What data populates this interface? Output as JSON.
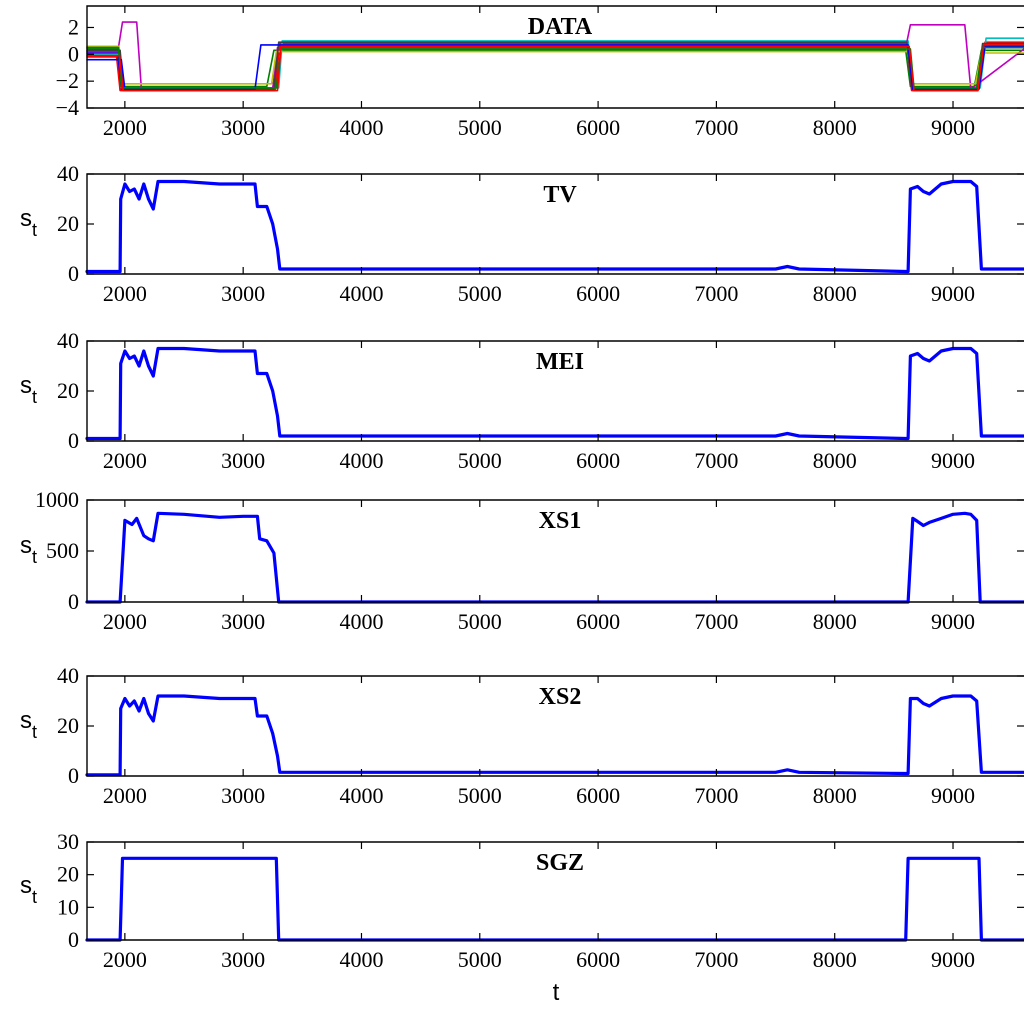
{
  "figure": {
    "xlabel": "t"
  },
  "chart_data": [
    {
      "type": "line",
      "title": "DATA",
      "ylabel": "",
      "xlim": [
        1680,
        9600
      ],
      "ylim": [
        -4,
        3.6
      ],
      "xticks": [
        2000,
        3000,
        4000,
        5000,
        6000,
        7000,
        8000,
        9000
      ],
      "yticks": [
        -4,
        -2,
        0,
        2
      ],
      "ytick_labels": [
        "−4",
        "−2",
        "0",
        "2"
      ],
      "series_colors": [
        "#0000ff",
        "#008000",
        "#ff0000",
        "#00bfbf",
        "#bf00bf",
        "#bfbf00",
        "#404040",
        "#0000ff",
        "#008000",
        "#ff0000"
      ],
      "series": [
        {
          "x": [
            1680,
            1940,
            1960,
            3250,
            3300,
            8620,
            8650,
            9200,
            9260,
            9600
          ],
          "y": [
            0.1,
            0.1,
            -2.6,
            -2.6,
            0.6,
            0.6,
            -2.6,
            -2.6,
            0.5,
            0.5
          ]
        },
        {
          "x": [
            1680,
            1950,
            1970,
            3200,
            3260,
            8600,
            8640,
            9180,
            9240,
            9600
          ],
          "y": [
            0.4,
            0.4,
            -2.4,
            -2.4,
            0.3,
            0.3,
            -2.4,
            -2.4,
            0.3,
            0.3
          ]
        },
        {
          "x": [
            1680,
            1930,
            1960,
            3270,
            3310,
            8610,
            8650,
            9210,
            9270,
            9600
          ],
          "y": [
            -0.2,
            -0.2,
            -2.7,
            -2.7,
            0.8,
            0.8,
            -2.7,
            -2.7,
            0.9,
            0.9
          ]
        },
        {
          "x": [
            1680,
            1960,
            1990,
            3300,
            3330,
            8620,
            8660,
            9230,
            9280,
            9600
          ],
          "y": [
            0.0,
            0.0,
            -2.5,
            -2.5,
            1.0,
            1.0,
            -2.5,
            -2.5,
            1.2,
            1.2
          ]
        },
        {
          "x": [
            1680,
            1940,
            1980,
            2100,
            2140,
            3250,
            3290,
            8600,
            8640,
            9100,
            9150,
            9600
          ],
          "y": [
            0.2,
            0.2,
            2.4,
            2.4,
            -2.6,
            -2.6,
            0.5,
            0.5,
            2.2,
            2.2,
            -2.6,
            0.4
          ]
        },
        {
          "x": [
            1680,
            1950,
            1980,
            3240,
            3280,
            8630,
            8660,
            9190,
            9240,
            9600
          ],
          "y": [
            0.6,
            0.6,
            -2.2,
            -2.2,
            0.2,
            0.2,
            -2.2,
            -2.2,
            0.1,
            0.1
          ]
        },
        {
          "x": [
            1680,
            1960,
            1990,
            3260,
            3300,
            8610,
            8650,
            9200,
            9250,
            9600
          ],
          "y": [
            0.3,
            0.3,
            -2.6,
            -2.6,
            0.9,
            0.9,
            -2.6,
            -2.6,
            0.8,
            0.8
          ]
        },
        {
          "x": [
            1680,
            1970,
            2000,
            3100,
            3150,
            8620,
            8660,
            9220,
            9270,
            9600
          ],
          "y": [
            -0.4,
            -0.4,
            -2.6,
            -2.6,
            0.7,
            0.7,
            -2.6,
            -2.6,
            0.6,
            0.6
          ]
        },
        {
          "x": [
            1680,
            1945,
            1975,
            3280,
            3320,
            8640,
            8670,
            9200,
            9250,
            9600
          ],
          "y": [
            0.5,
            0.5,
            -2.5,
            -2.5,
            0.4,
            0.4,
            -2.5,
            -2.5,
            0.5,
            0.5
          ]
        },
        {
          "x": [
            1680,
            1955,
            1985,
            3290,
            3320,
            8630,
            8670,
            9210,
            9260,
            9600
          ],
          "y": [
            -0.1,
            -0.1,
            -2.7,
            -2.7,
            0.6,
            0.6,
            -2.7,
            -2.7,
            0.7,
            0.7
          ]
        }
      ]
    },
    {
      "type": "line",
      "title": "TV",
      "ylabel": "s_t",
      "xlim": [
        1680,
        9600
      ],
      "ylim": [
        0,
        40
      ],
      "xticks": [
        2000,
        3000,
        4000,
        5000,
        6000,
        7000,
        8000,
        9000
      ],
      "yticks": [
        0,
        20,
        40
      ],
      "ytick_labels": [
        "0",
        "20",
        "40"
      ],
      "series_colors": [
        "#0000ff"
      ],
      "series": [
        {
          "x": [
            1680,
            1960,
            1965,
            2000,
            2040,
            2080,
            2120,
            2160,
            2200,
            2240,
            2280,
            2500,
            2800,
            3000,
            3100,
            3120,
            3200,
            3250,
            3290,
            3310,
            3350,
            3400,
            5000,
            7000,
            7500,
            7600,
            7700,
            8600,
            8620,
            8640,
            8700,
            8750,
            8800,
            8900,
            9000,
            9100,
            9150,
            9200,
            9240,
            9300,
            9600
          ],
          "y": [
            1,
            1,
            30,
            36,
            33,
            34,
            30,
            36,
            30,
            26,
            37,
            37,
            36,
            36,
            36,
            27,
            27,
            20,
            10,
            2,
            2,
            2,
            2,
            2,
            2,
            3,
            2,
            1,
            1,
            34,
            35,
            33,
            32,
            36,
            37,
            37,
            37,
            35,
            2,
            2,
            2
          ]
        }
      ]
    },
    {
      "type": "line",
      "title": "MEI",
      "ylabel": "s_t",
      "xlim": [
        1680,
        9600
      ],
      "ylim": [
        0,
        40
      ],
      "xticks": [
        2000,
        3000,
        4000,
        5000,
        6000,
        7000,
        8000,
        9000
      ],
      "yticks": [
        0,
        20,
        40
      ],
      "ytick_labels": [
        "0",
        "20",
        "40"
      ],
      "series_colors": [
        "#0000ff"
      ],
      "series": [
        {
          "x": [
            1680,
            1960,
            1965,
            2000,
            2040,
            2080,
            2120,
            2160,
            2200,
            2240,
            2280,
            2500,
            2800,
            3000,
            3100,
            3120,
            3200,
            3250,
            3290,
            3310,
            3350,
            3400,
            5000,
            7000,
            7500,
            7600,
            7700,
            8600,
            8620,
            8640,
            8700,
            8750,
            8800,
            8900,
            9000,
            9100,
            9150,
            9200,
            9240,
            9300,
            9600
          ],
          "y": [
            1,
            1,
            31,
            36,
            33,
            34,
            30,
            36,
            30,
            26,
            37,
            37,
            36,
            36,
            36,
            27,
            27,
            20,
            10,
            2,
            2,
            2,
            2,
            2,
            2,
            3,
            2,
            1,
            1,
            34,
            35,
            33,
            32,
            36,
            37,
            37,
            37,
            35,
            2,
            2,
            2
          ]
        }
      ]
    },
    {
      "type": "line",
      "title": "XS1",
      "ylabel": "s_t",
      "xlim": [
        1680,
        9600
      ],
      "ylim": [
        0,
        1000
      ],
      "xticks": [
        2000,
        3000,
        4000,
        5000,
        6000,
        7000,
        8000,
        9000
      ],
      "yticks": [
        0,
        500,
        1000
      ],
      "ytick_labels": [
        "0",
        "500",
        "1000"
      ],
      "series_colors": [
        "#0000ff"
      ],
      "series": [
        {
          "x": [
            1680,
            1960,
            2000,
            2060,
            2100,
            2160,
            2200,
            2240,
            2280,
            2500,
            2800,
            3000,
            3120,
            3140,
            3200,
            3260,
            3300,
            3400,
            8600,
            8620,
            8660,
            8700,
            8750,
            8800,
            8900,
            9000,
            9100,
            9150,
            9200,
            9230,
            9300,
            9600
          ],
          "y": [
            0,
            0,
            800,
            760,
            820,
            650,
            620,
            600,
            870,
            860,
            830,
            840,
            840,
            620,
            600,
            480,
            0,
            0,
            0,
            0,
            820,
            790,
            750,
            780,
            820,
            860,
            870,
            860,
            800,
            0,
            0,
            0
          ]
        }
      ]
    },
    {
      "type": "line",
      "title": "XS2",
      "ylabel": "s_t",
      "xlim": [
        1680,
        9600
      ],
      "ylim": [
        0,
        40
      ],
      "xticks": [
        2000,
        3000,
        4000,
        5000,
        6000,
        7000,
        8000,
        9000
      ],
      "yticks": [
        0,
        20,
        40
      ],
      "ytick_labels": [
        "0",
        "20",
        "40"
      ],
      "series_colors": [
        "#0000ff"
      ],
      "series": [
        {
          "x": [
            1680,
            1960,
            1965,
            2000,
            2040,
            2080,
            2120,
            2160,
            2200,
            2240,
            2280,
            2500,
            2800,
            3000,
            3100,
            3120,
            3200,
            3250,
            3290,
            3310,
            3350,
            3400,
            5000,
            7000,
            7500,
            7600,
            7700,
            8600,
            8620,
            8640,
            8700,
            8750,
            8800,
            8900,
            9000,
            9100,
            9150,
            9200,
            9240,
            9300,
            9600
          ],
          "y": [
            0.5,
            0.5,
            27,
            31,
            28,
            30,
            26,
            31,
            25,
            22,
            32,
            32,
            31,
            31,
            31,
            24,
            24,
            17,
            8,
            1.5,
            1.5,
            1.5,
            1.5,
            1.5,
            1.5,
            2.5,
            1.5,
            1,
            1,
            31,
            31,
            29,
            28,
            31,
            32,
            32,
            32,
            30,
            1.5,
            1.5,
            1.5
          ]
        }
      ]
    },
    {
      "type": "line",
      "title": "SGZ",
      "ylabel": "s_t",
      "xlim": [
        1680,
        9600
      ],
      "ylim": [
        0,
        30
      ],
      "xticks": [
        2000,
        3000,
        4000,
        5000,
        6000,
        7000,
        8000,
        9000
      ],
      "yticks": [
        0,
        10,
        20,
        30
      ],
      "ytick_labels": [
        "0",
        "10",
        "20",
        "30"
      ],
      "series_colors": [
        "#0000ff"
      ],
      "series": [
        {
          "x": [
            1680,
            1960,
            1980,
            3280,
            3300,
            8600,
            8620,
            9220,
            9240,
            9600
          ],
          "y": [
            0,
            0,
            25,
            25,
            0,
            0,
            25,
            25,
            0,
            0
          ]
        }
      ]
    }
  ]
}
